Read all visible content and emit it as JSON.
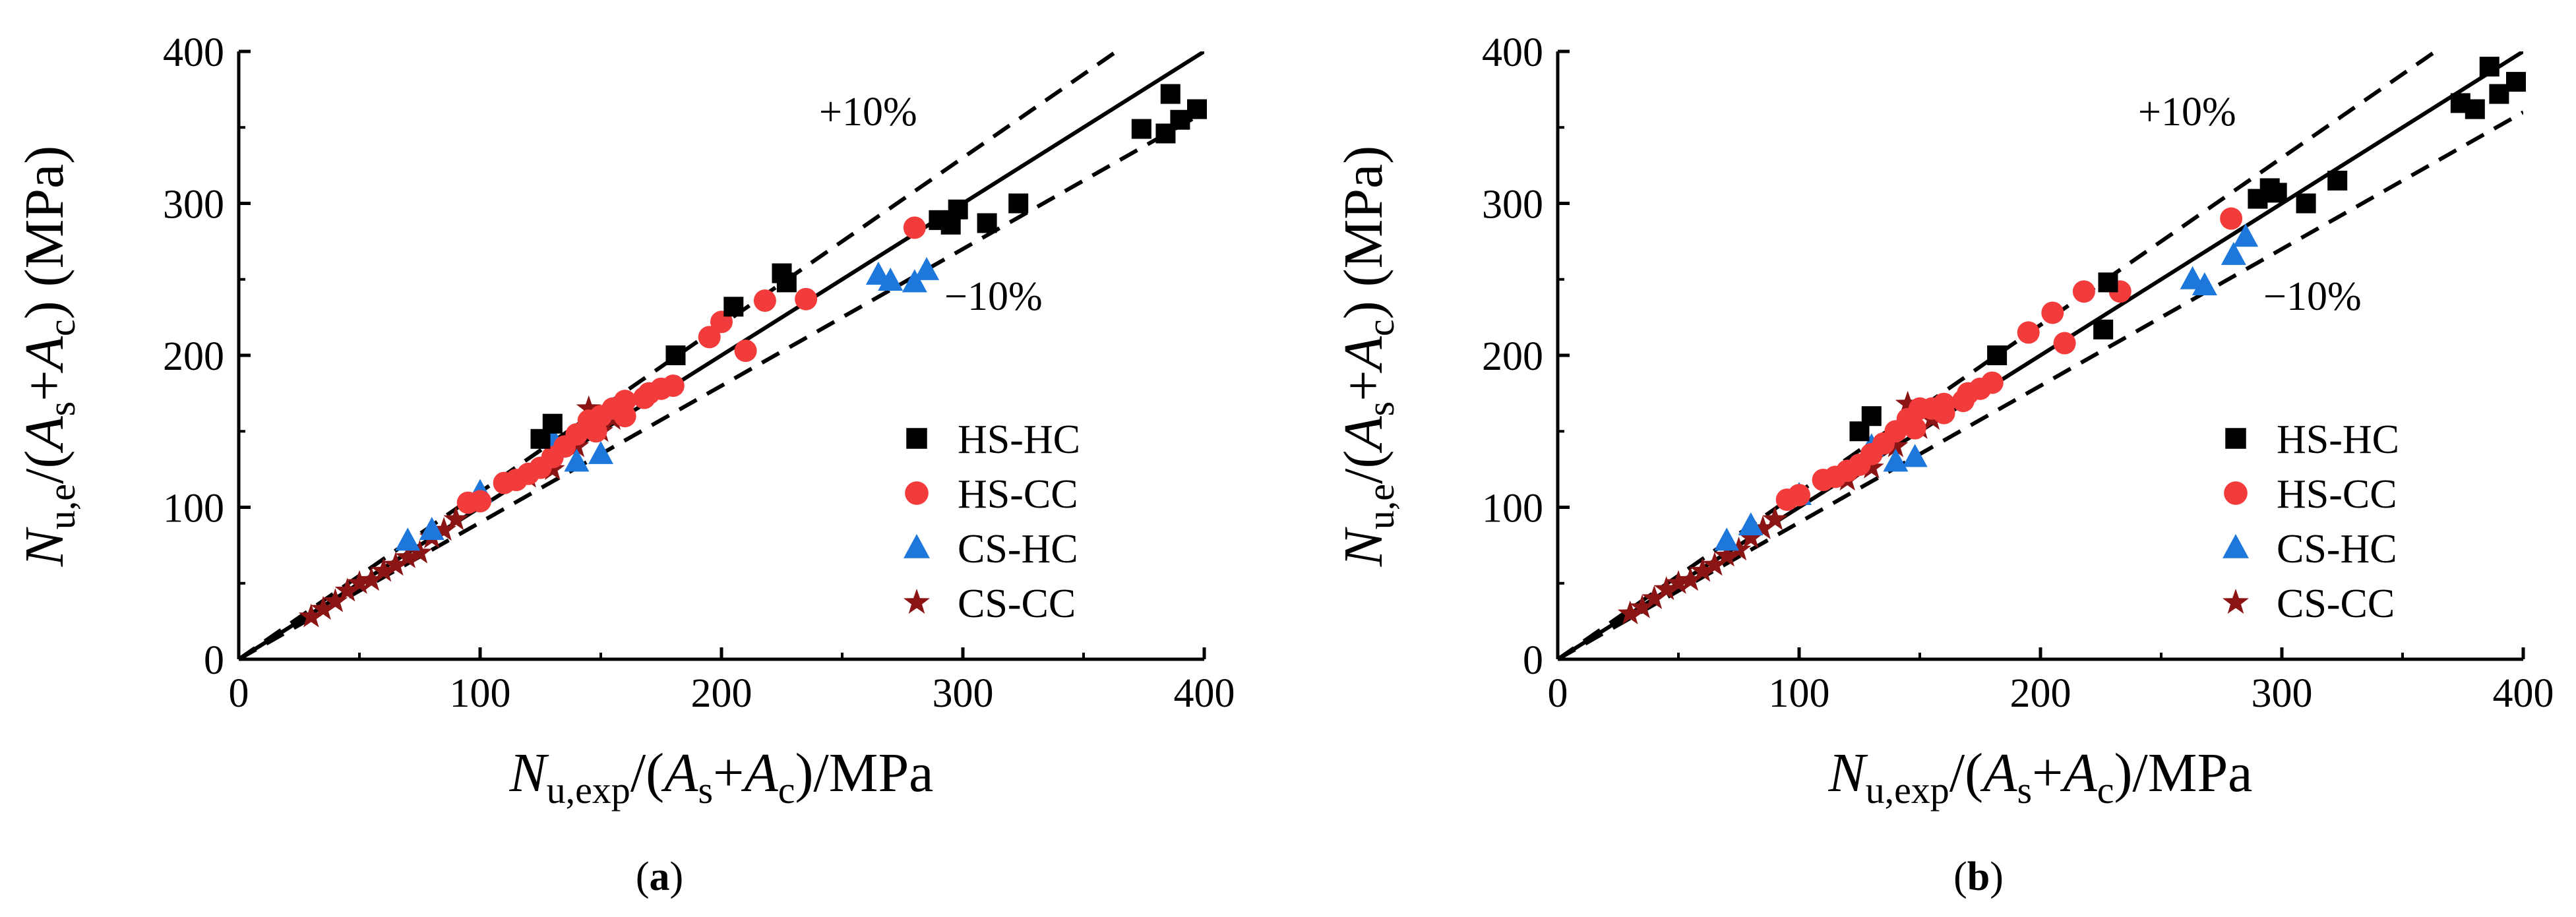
{
  "colors": {
    "HS-HC": "#000000",
    "HS-CC": "#f23c3c",
    "CS-HC": "#1e78dc",
    "CS-CC": "#8b1414"
  },
  "chart_data": [
    {
      "type": "scatter",
      "panel_label": "a",
      "x_range": [
        0,
        400
      ],
      "y_range": [
        0,
        400
      ],
      "x_ticks": [
        "0",
        "100",
        "200",
        "300",
        "400"
      ],
      "y_ticks": [
        "0",
        "100",
        "200",
        "300",
        "400"
      ],
      "xlabel": {
        "sym": "N",
        "sub": "u,exp",
        "mid": "/(",
        "a1": "A",
        "s1": "s",
        "plus": "+",
        "a2": "A",
        "s2": "c",
        "tail": ")/MPa"
      },
      "ylabel": {
        "sym": "N",
        "sub": "u,e",
        "mid": "/(",
        "a1": "A",
        "s1": "s",
        "plus": "+",
        "a2": "A",
        "s2": "c",
        "tail": ") (MPa)"
      },
      "lines": {
        "plus_label": "+10%",
        "minus_label": "−10%",
        "upper_factor": 1.1,
        "lower_factor": 0.9
      },
      "legend": [
        "HS-HC",
        "HS-CC",
        "CS-HC",
        "CS-CC"
      ],
      "series": [
        {
          "name": "HS-HC",
          "marker": "square",
          "points": [
            [
              374,
              349
            ],
            [
              384,
              346
            ],
            [
              386,
              372
            ],
            [
              390,
              355
            ],
            [
              397,
              362
            ],
            [
              290,
              289
            ],
            [
              295,
              286
            ],
            [
              298,
              296
            ],
            [
              310,
              287
            ],
            [
              323,
              300
            ],
            [
              225,
              254
            ],
            [
              227,
              248
            ],
            [
              205,
              232
            ],
            [
              181,
              200
            ],
            [
              130,
              155
            ],
            [
              125,
              145
            ]
          ]
        },
        {
          "name": "HS-CC",
          "marker": "circle",
          "points": [
            [
              280,
              284
            ],
            [
              235,
              237
            ],
            [
              218,
              236
            ],
            [
              210,
              203
            ],
            [
              200,
              222
            ],
            [
              195,
              212
            ],
            [
              180,
              180
            ],
            [
              175,
              178
            ],
            [
              168,
              172
            ],
            [
              160,
              170
            ],
            [
              155,
              165
            ],
            [
              150,
              160
            ],
            [
              148,
              150
            ],
            [
              145,
              157
            ],
            [
              140,
              148
            ],
            [
              135,
              140
            ],
            [
              130,
              133
            ],
            [
              125,
              126
            ],
            [
              120,
              122
            ],
            [
              115,
              118
            ],
            [
              110,
              116
            ],
            [
              100,
              104
            ],
            [
              95,
              103
            ],
            [
              160,
              160
            ],
            [
              170,
              175
            ]
          ]
        },
        {
          "name": "CS-HC",
          "marker": "triangle",
          "points": [
            [
              265,
              253
            ],
            [
              270,
              249
            ],
            [
              280,
              248
            ],
            [
              285,
              256
            ],
            [
              150,
              135
            ],
            [
              140,
              130
            ],
            [
              130,
              145
            ],
            [
              100,
              110
            ],
            [
              80,
              85
            ],
            [
              70,
              78
            ]
          ]
        },
        {
          "name": "CS-CC",
          "marker": "star",
          "points": [
            [
              30,
              28
            ],
            [
              35,
              33
            ],
            [
              40,
              38
            ],
            [
              45,
              45
            ],
            [
              50,
              50
            ],
            [
              55,
              52
            ],
            [
              60,
              58
            ],
            [
              65,
              62
            ],
            [
              70,
              67
            ],
            [
              75,
              70
            ],
            [
              80,
              80
            ],
            [
              85,
              85
            ],
            [
              90,
              92
            ],
            [
              120,
              120
            ],
            [
              130,
              125
            ],
            [
              140,
              140
            ],
            [
              150,
              150
            ],
            [
              155,
              158
            ],
            [
              145,
              165
            ]
          ]
        }
      ]
    },
    {
      "type": "scatter",
      "panel_label": "b",
      "x_range": [
        0,
        400
      ],
      "y_range": [
        0,
        400
      ],
      "x_ticks": [
        "0",
        "100",
        "200",
        "300",
        "400"
      ],
      "y_ticks": [
        "0",
        "100",
        "200",
        "300",
        "400"
      ],
      "xlabel": {
        "sym": "N",
        "sub": "u,exp",
        "mid": "/(",
        "a1": "A",
        "s1": "s",
        "plus": "+",
        "a2": "A",
        "s2": "c",
        "tail": ")/MPa"
      },
      "ylabel": {
        "sym": "N",
        "sub": "u,e",
        "mid": "/(",
        "a1": "A",
        "s1": "s",
        "plus": "+",
        "a2": "A",
        "s2": "c",
        "tail": ") (MPa)"
      },
      "lines": {
        "plus_label": "+10%",
        "minus_label": "−10%",
        "upper_factor": 1.1,
        "lower_factor": 0.9
      },
      "legend": [
        "HS-HC",
        "HS-CC",
        "CS-HC",
        "CS-CC"
      ],
      "series": [
        {
          "name": "HS-HC",
          "marker": "square",
          "points": [
            [
              374,
              366
            ],
            [
              380,
              362
            ],
            [
              386,
              390
            ],
            [
              390,
              372
            ],
            [
              397,
              380
            ],
            [
              290,
              303
            ],
            [
              295,
              310
            ],
            [
              298,
              307
            ],
            [
              310,
              300
            ],
            [
              323,
              315
            ],
            [
              226,
              217
            ],
            [
              228,
              248
            ],
            [
              182,
              200
            ],
            [
              130,
              160
            ],
            [
              125,
              150
            ]
          ]
        },
        {
          "name": "HS-CC",
          "marker": "circle",
          "points": [
            [
              279,
              290
            ],
            [
              233,
              242
            ],
            [
              218,
              242
            ],
            [
              210,
              208
            ],
            [
              205,
              228
            ],
            [
              195,
              215
            ],
            [
              180,
              182
            ],
            [
              175,
              178
            ],
            [
              168,
              170
            ],
            [
              160,
              168
            ],
            [
              155,
              165
            ],
            [
              150,
              165
            ],
            [
              148,
              152
            ],
            [
              145,
              158
            ],
            [
              140,
              150
            ],
            [
              135,
              142
            ],
            [
              130,
              135
            ],
            [
              125,
              128
            ],
            [
              120,
              124
            ],
            [
              115,
              120
            ],
            [
              110,
              118
            ],
            [
              100,
              108
            ],
            [
              95,
              105
            ],
            [
              160,
              162
            ],
            [
              170,
              175
            ]
          ]
        },
        {
          "name": "CS-HC",
          "marker": "triangle",
          "points": [
            [
              263,
              250
            ],
            [
              268,
              246
            ],
            [
              280,
              266
            ],
            [
              285,
              278
            ],
            [
              148,
              133
            ],
            [
              140,
              130
            ],
            [
              130,
              140
            ],
            [
              100,
              108
            ],
            [
              80,
              88
            ],
            [
              70,
              78
            ]
          ]
        },
        {
          "name": "CS-CC",
          "marker": "star",
          "points": [
            [
              30,
              30
            ],
            [
              35,
              34
            ],
            [
              40,
              40
            ],
            [
              45,
              46
            ],
            [
              50,
              50
            ],
            [
              55,
              52
            ],
            [
              60,
              58
            ],
            [
              65,
              62
            ],
            [
              70,
              68
            ],
            [
              75,
              72
            ],
            [
              80,
              80
            ],
            [
              85,
              86
            ],
            [
              90,
              92
            ],
            [
              120,
              118
            ],
            [
              130,
              126
            ],
            [
              140,
              140
            ],
            [
              150,
              152
            ],
            [
              155,
              158
            ],
            [
              145,
              168
            ]
          ]
        }
      ]
    }
  ]
}
